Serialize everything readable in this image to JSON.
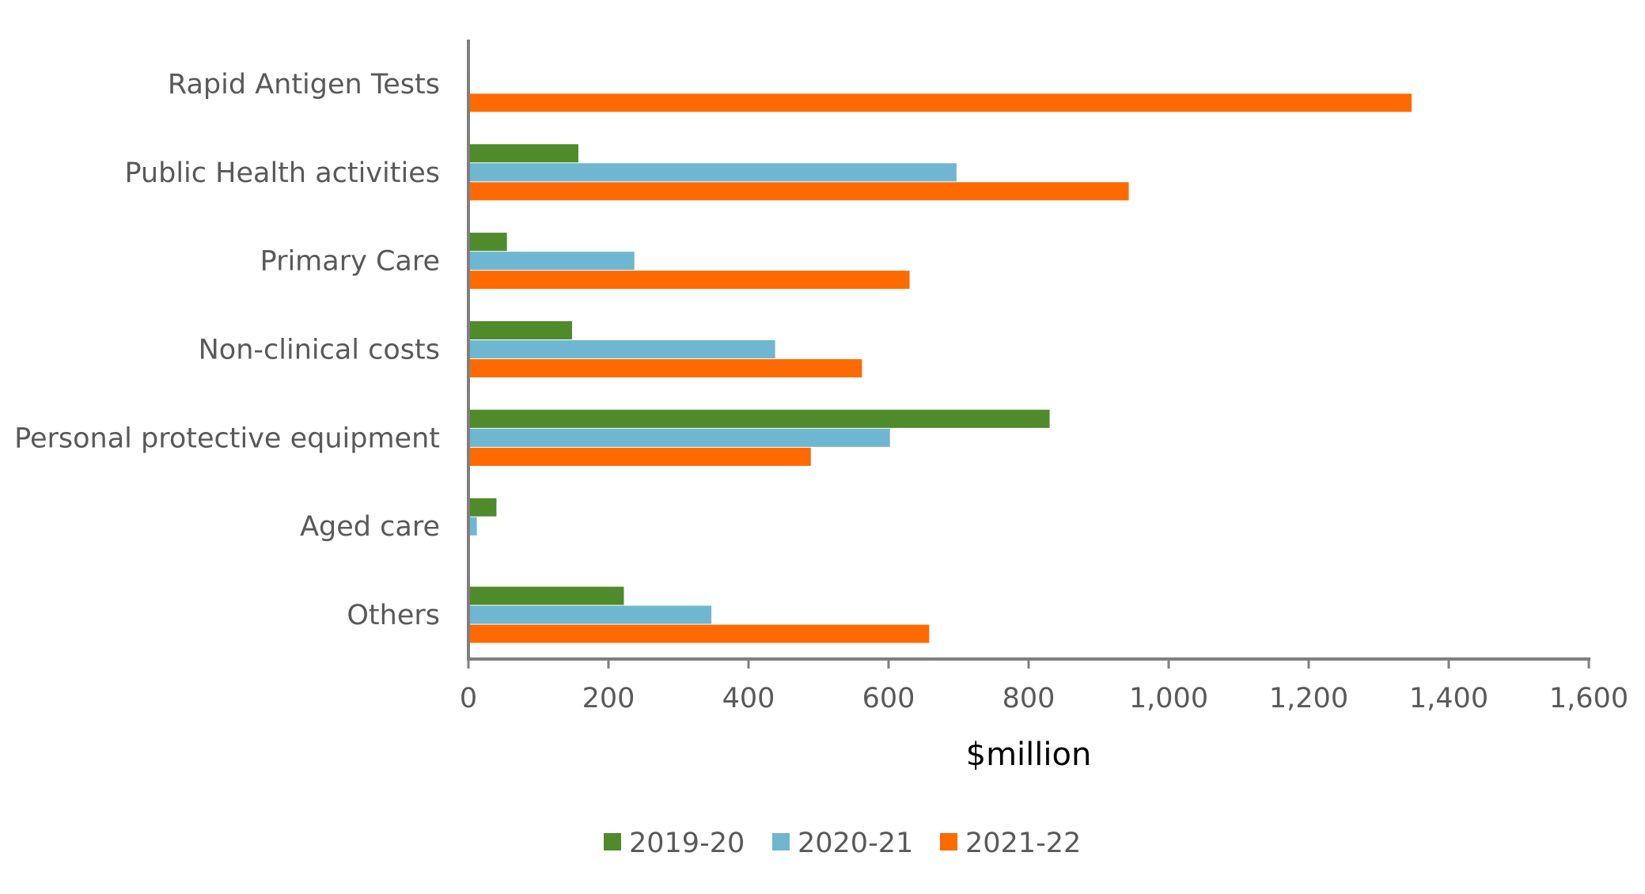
{
  "chart_data": {
    "type": "bar",
    "orientation": "horizontal",
    "categories": [
      "Rapid Antigen Tests",
      "Public Health activities",
      "Primary Care",
      "Non-clinical costs",
      "Personal protective equipment",
      "Aged care",
      "Others"
    ],
    "series": [
      {
        "name": "2019-20",
        "color": "#4f8a2b",
        "values": [
          0,
          157,
          55,
          148,
          830,
          40,
          222
        ]
      },
      {
        "name": "2020-21",
        "color": "#6fb7d1",
        "values": [
          0,
          697,
          237,
          438,
          602,
          12,
          347
        ]
      },
      {
        "name": "2021-22",
        "color": "#ff6a00",
        "values": [
          1347,
          943,
          630,
          562,
          489,
          0,
          658
        ]
      }
    ],
    "xlim": [
      0,
      1600
    ],
    "xticks": [
      0,
      200,
      400,
      600,
      800,
      1000,
      1200,
      1400,
      1600
    ],
    "xtick_labels": [
      "0",
      "200",
      "400",
      "600",
      "800",
      "1,000",
      "1,200",
      "1,400",
      "1,600"
    ],
    "xlabel": "$million",
    "ylabel": "",
    "title": "",
    "grid": false,
    "legend_position": "bottom"
  }
}
